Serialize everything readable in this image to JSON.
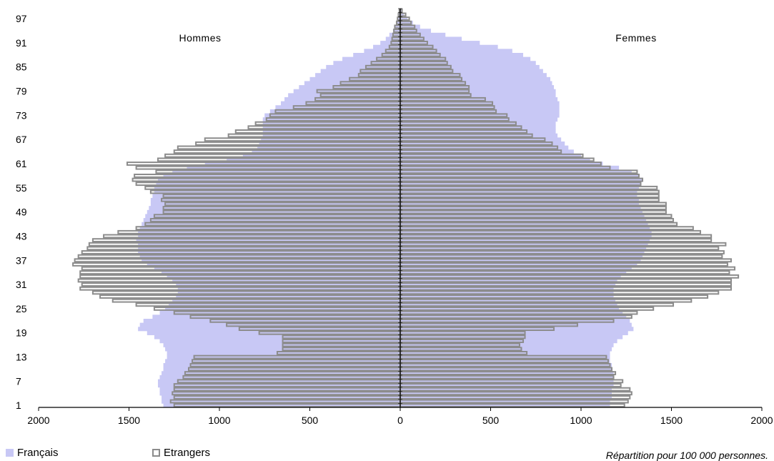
{
  "chart_data": {
    "type": "bar",
    "orientation": "horizontal",
    "variant": "population-pyramid",
    "ylabel_ticks": [
      "1",
      "7",
      "13",
      "19",
      "25",
      "31",
      "37",
      "43",
      "49",
      "55",
      "61",
      "67",
      "73",
      "79",
      "85",
      "91",
      "97"
    ],
    "x_ticks": [
      "2000",
      "1500",
      "1000",
      "500",
      "0",
      "500",
      "1000",
      "1500",
      "2000"
    ],
    "xlim": [
      -2000,
      2000
    ],
    "age_range": [
      1,
      99
    ],
    "side_labels": {
      "left": "Hommes",
      "right": "Femmes"
    },
    "series": [
      {
        "name": "Français",
        "style": "filled",
        "color": "#c8c8f5",
        "hommes": [
          1310,
          1320,
          1320,
          1330,
          1330,
          1340,
          1340,
          1330,
          1320,
          1310,
          1310,
          1300,
          1290,
          1290,
          1300,
          1310,
          1330,
          1360,
          1400,
          1450,
          1440,
          1420,
          1370,
          1330,
          1300,
          1280,
          1260,
          1240,
          1230,
          1230,
          1240,
          1260,
          1290,
          1320,
          1360,
          1400,
          1430,
          1440,
          1450,
          1450,
          1450,
          1460,
          1450,
          1450,
          1440,
          1430,
          1420,
          1410,
          1400,
          1390,
          1380,
          1380,
          1370,
          1360,
          1360,
          1350,
          1340,
          1310,
          1260,
          1180,
          1080,
          960,
          870,
          820,
          790,
          780,
          770,
          760,
          760,
          760,
          760,
          760,
          750,
          720,
          690,
          660,
          640,
          620,
          590,
          560,
          530,
          500,
          470,
          440,
          410,
          370,
          320,
          260,
          200,
          150,
          110,
          80,
          60,
          40,
          30,
          20,
          15,
          10,
          5
        ],
        "femmes": [
          1160,
          1160,
          1170,
          1170,
          1170,
          1180,
          1180,
          1180,
          1180,
          1170,
          1170,
          1160,
          1160,
          1160,
          1170,
          1180,
          1200,
          1230,
          1260,
          1290,
          1280,
          1270,
          1250,
          1230,
          1210,
          1200,
          1190,
          1180,
          1180,
          1180,
          1190,
          1200,
          1220,
          1250,
          1280,
          1310,
          1330,
          1340,
          1350,
          1360,
          1370,
          1380,
          1390,
          1390,
          1380,
          1370,
          1360,
          1350,
          1340,
          1330,
          1320,
          1320,
          1310,
          1310,
          1320,
          1330,
          1340,
          1320,
          1280,
          1210,
          1120,
          1050,
          1000,
          960,
          930,
          910,
          890,
          870,
          860,
          860,
          860,
          870,
          880,
          880,
          880,
          880,
          870,
          860,
          860,
          850,
          840,
          830,
          810,
          790,
          770,
          750,
          720,
          680,
          620,
          540,
          440,
          340,
          250,
          170,
          110,
          70,
          40,
          20,
          8
        ]
      },
      {
        "name": "Etrangers",
        "style": "outline",
        "color": "#8c8c8c",
        "hommes": [
          1250,
          1270,
          1250,
          1260,
          1250,
          1250,
          1230,
          1200,
          1190,
          1170,
          1160,
          1150,
          1140,
          680,
          650,
          650,
          650,
          650,
          780,
          890,
          960,
          1050,
          1160,
          1250,
          1360,
          1460,
          1590,
          1660,
          1700,
          1770,
          1760,
          1780,
          1770,
          1770,
          1760,
          1810,
          1800,
          1780,
          1760,
          1730,
          1720,
          1700,
          1640,
          1560,
          1460,
          1410,
          1380,
          1360,
          1310,
          1310,
          1300,
          1320,
          1310,
          1380,
          1410,
          1460,
          1480,
          1470,
          1350,
          1460,
          1510,
          1340,
          1300,
          1250,
          1230,
          1130,
          1080,
          950,
          910,
          840,
          800,
          740,
          720,
          690,
          590,
          520,
          470,
          440,
          460,
          370,
          330,
          280,
          230,
          220,
          190,
          160,
          130,
          100,
          80,
          60,
          50,
          45,
          40,
          35,
          30,
          20,
          15,
          10,
          5
        ],
        "femmes": [
          1240,
          1260,
          1270,
          1280,
          1270,
          1220,
          1230,
          1180,
          1190,
          1170,
          1160,
          1150,
          1140,
          700,
          670,
          660,
          680,
          690,
          690,
          850,
          980,
          1180,
          1280,
          1310,
          1400,
          1510,
          1610,
          1700,
          1760,
          1830,
          1830,
          1830,
          1870,
          1820,
          1850,
          1810,
          1830,
          1780,
          1790,
          1760,
          1800,
          1720,
          1720,
          1660,
          1620,
          1530,
          1510,
          1500,
          1470,
          1470,
          1470,
          1430,
          1430,
          1430,
          1420,
          1330,
          1340,
          1320,
          1310,
          1160,
          1110,
          1070,
          1010,
          890,
          870,
          840,
          800,
          730,
          700,
          670,
          640,
          600,
          590,
          530,
          520,
          510,
          470,
          390,
          380,
          380,
          360,
          340,
          330,
          290,
          280,
          260,
          250,
          220,
          200,
          180,
          150,
          130,
          110,
          90,
          80,
          60,
          50,
          30,
          10
        ]
      }
    ]
  },
  "legend": {
    "francais": "Français",
    "etrangers": "Etrangers"
  },
  "note": "Répartition  pour 100 000 personnes."
}
